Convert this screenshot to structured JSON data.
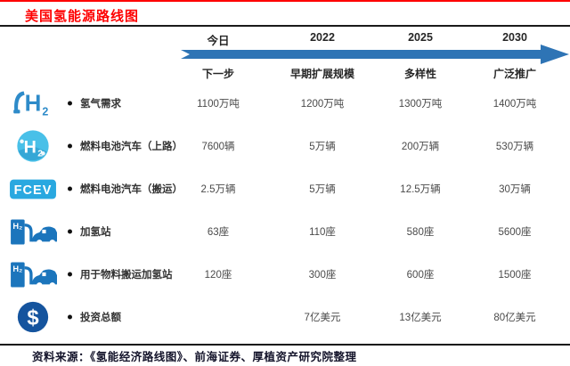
{
  "page": {
    "title": "美国氢能源路线图"
  },
  "timeline": {
    "columns": [
      {
        "year": "今日",
        "phase": "下一步"
      },
      {
        "year": "2022",
        "phase": "早期扩展规模"
      },
      {
        "year": "2025",
        "phase": "多样性"
      },
      {
        "year": "2030",
        "phase": "广泛推广"
      }
    ]
  },
  "table": {
    "rows": [
      {
        "icon": "h2-pump-icon",
        "label": "氢气需求",
        "values": [
          "1100万吨",
          "1200万吨",
          "1300万吨",
          "1400万吨"
        ]
      },
      {
        "icon": "h2-molecule-icon",
        "label": "燃料电池汽车（上路）",
        "values": [
          "7600辆",
          "5万辆",
          "200万辆",
          "530万辆"
        ]
      },
      {
        "icon": "fcev-badge-icon",
        "label": "燃料电池汽车（搬运）",
        "values": [
          "2.5万辆",
          "5万辆",
          "12.5万辆",
          "30万辆"
        ]
      },
      {
        "icon": "fuel-station-icon",
        "label": "加氢站",
        "values": [
          "63座",
          "110座",
          "580座",
          "5600座"
        ]
      },
      {
        "icon": "fuel-station-icon",
        "label": "用于物料搬运加氢站",
        "values": [
          "120座",
          "300座",
          "600座",
          "1500座"
        ]
      },
      {
        "icon": "dollar-icon",
        "label": "投资总额",
        "values": [
          "",
          "7亿美元",
          "13亿美元",
          "80亿美元"
        ]
      }
    ]
  },
  "footer": {
    "source": "资料来源：《氢能经济路线图》、前海证券、厚植资产研究院整理"
  },
  "colors": {
    "title_red": "#fe0000",
    "arrow_blue": "#2e74b5",
    "station_blue": "#1b75bc",
    "molecule_cyan": "#49c0e8",
    "badge_blue": "#29a8e0",
    "dollar_blue": "#15549e",
    "rule_black": "#1a1a1a"
  }
}
